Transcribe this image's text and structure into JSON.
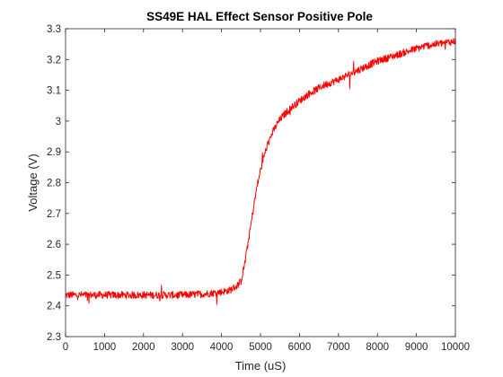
{
  "chart_data": {
    "type": "line",
    "title": "SS49E HAL Effect Sensor Positive Pole",
    "xlabel": "Time (uS)",
    "ylabel": "Voltage (V)",
    "xlim": [
      0,
      10000
    ],
    "ylim": [
      2.3,
      3.3
    ],
    "xticks": [
      0,
      1000,
      2000,
      3000,
      4000,
      5000,
      6000,
      7000,
      8000,
      9000,
      10000
    ],
    "yticks": [
      2.3,
      2.4,
      2.5,
      2.6,
      2.7,
      2.8,
      2.9,
      3.0,
      3.1,
      3.2,
      3.3
    ],
    "xtick_labels": [
      "0",
      "1000",
      "2000",
      "3000",
      "4000",
      "5000",
      "6000",
      "7000",
      "8000",
      "9000",
      "10000"
    ],
    "ytick_labels": [
      "2.3",
      "2.4",
      "2.5",
      "2.6",
      "2.7",
      "2.8",
      "2.9",
      "3",
      "3.1",
      "3.2",
      "3.3"
    ],
    "grid": false,
    "series": [
      {
        "color": "#ff0000",
        "x": [
          0,
          500,
          1000,
          1500,
          2000,
          2500,
          3000,
          3500,
          4000,
          4200,
          4400,
          4500,
          4600,
          4700,
          4800,
          4900,
          5000,
          5100,
          5200,
          5300,
          5400,
          5500,
          5600,
          5800,
          6000,
          6200,
          6400,
          6600,
          6800,
          7000,
          7250,
          7500,
          7750,
          8000,
          8250,
          8500,
          8750,
          9000,
          9250,
          9500,
          9750,
          10000
        ],
        "y": [
          2.435,
          2.435,
          2.435,
          2.435,
          2.435,
          2.435,
          2.435,
          2.438,
          2.445,
          2.45,
          2.465,
          2.48,
          2.54,
          2.62,
          2.7,
          2.78,
          2.84,
          2.89,
          2.93,
          2.96,
          2.985,
          3.005,
          3.02,
          3.045,
          3.065,
          3.085,
          3.1,
          3.115,
          3.125,
          3.135,
          3.15,
          3.165,
          3.18,
          3.195,
          3.205,
          3.215,
          3.225,
          3.235,
          3.245,
          3.25,
          3.255,
          3.26
        ],
        "noise_amplitude": 0.012
      }
    ]
  }
}
